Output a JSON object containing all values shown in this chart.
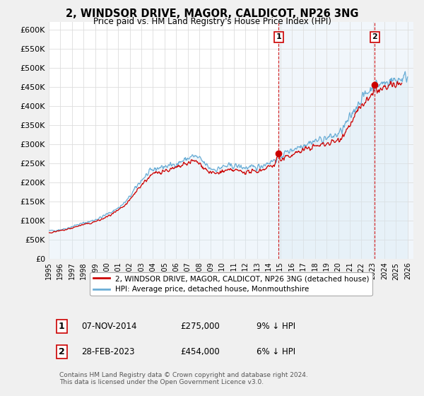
{
  "title": "2, WINDSOR DRIVE, MAGOR, CALDICOT, NP26 3NG",
  "subtitle": "Price paid vs. HM Land Registry's House Price Index (HPI)",
  "yticks": [
    0,
    50000,
    100000,
    150000,
    200000,
    250000,
    300000,
    350000,
    400000,
    450000,
    500000,
    550000,
    600000
  ],
  "xlim_start": 1995.0,
  "xlim_end": 2026.5,
  "ylim": [
    0,
    620000
  ],
  "outer_bg_color": "#f0f0f0",
  "plot_bg_color": "#ffffff",
  "grid_color": "#dddddd",
  "hpi_color": "#6baed6",
  "hpi_fill_color": "#d6e8f5",
  "price_color": "#cc0000",
  "vline_color": "#cc0000",
  "shade_color": "#ddeeff",
  "marker1_x": 2014.85,
  "marker1_y": 275000,
  "marker2_x": 2023.16,
  "marker2_y": 454000,
  "vline1_x": 2014.85,
  "vline2_x": 2023.16,
  "legend_label1": "2, WINDSOR DRIVE, MAGOR, CALDICOT, NP26 3NG (detached house)",
  "legend_label2": "HPI: Average price, detached house, Monmouthshire",
  "table_row1": [
    "1",
    "07-NOV-2014",
    "£275,000",
    "9% ↓ HPI"
  ],
  "table_row2": [
    "2",
    "28-FEB-2023",
    "£454,000",
    "6% ↓ HPI"
  ],
  "footer": "Contains HM Land Registry data © Crown copyright and database right 2024.\nThis data is licensed under the Open Government Licence v3.0."
}
